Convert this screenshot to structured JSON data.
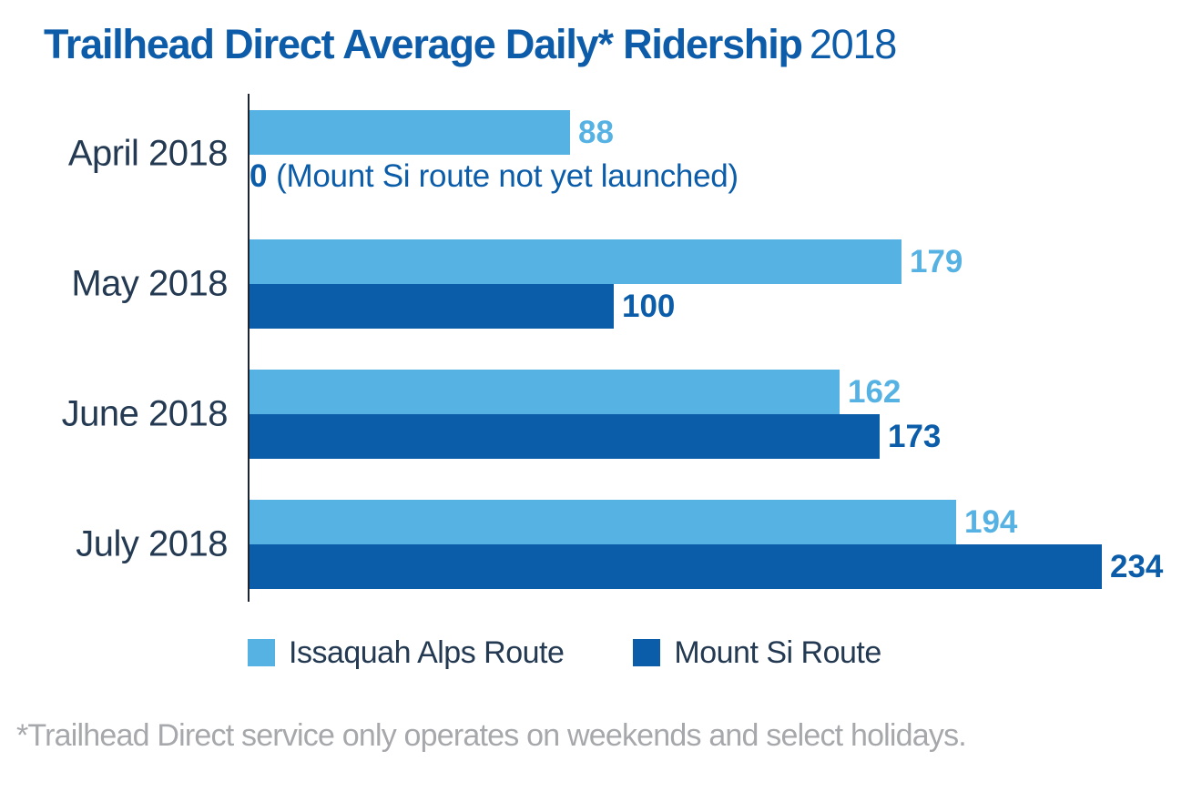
{
  "title": {
    "main": "Trailhead Direct Average Daily* Ridership",
    "year": "2018",
    "color": "#0D5CA9"
  },
  "chart_data": {
    "type": "bar",
    "orientation": "horizontal",
    "title": "Trailhead Direct Average Daily* Ridership 2018",
    "categories": [
      "April 2018",
      "May 2018",
      "June 2018",
      "July 2018"
    ],
    "series": [
      {
        "name": "Issaquah Alps Route",
        "color": "#56B2E3",
        "values": [
          88,
          179,
          162,
          194
        ]
      },
      {
        "name": "Mount Si Route",
        "color": "#0B5CA9",
        "values": [
          0,
          100,
          173,
          234
        ]
      }
    ],
    "annotations": [
      {
        "category_index": 0,
        "series": "Mount Si Route",
        "value_label": "0",
        "text": "(Mount Si route not yet launched)"
      }
    ],
    "value_labels": true,
    "xlim": [
      0,
      250
    ],
    "grid": false,
    "legend_position": "bottom",
    "axis_color": "#1B2430",
    "category_label_color": "#243A52",
    "legend_label_color": "#243A52"
  },
  "footnote": {
    "text": "*Trailhead Direct service only operates on weekends and select holidays.",
    "color": "#A6A8AB"
  }
}
